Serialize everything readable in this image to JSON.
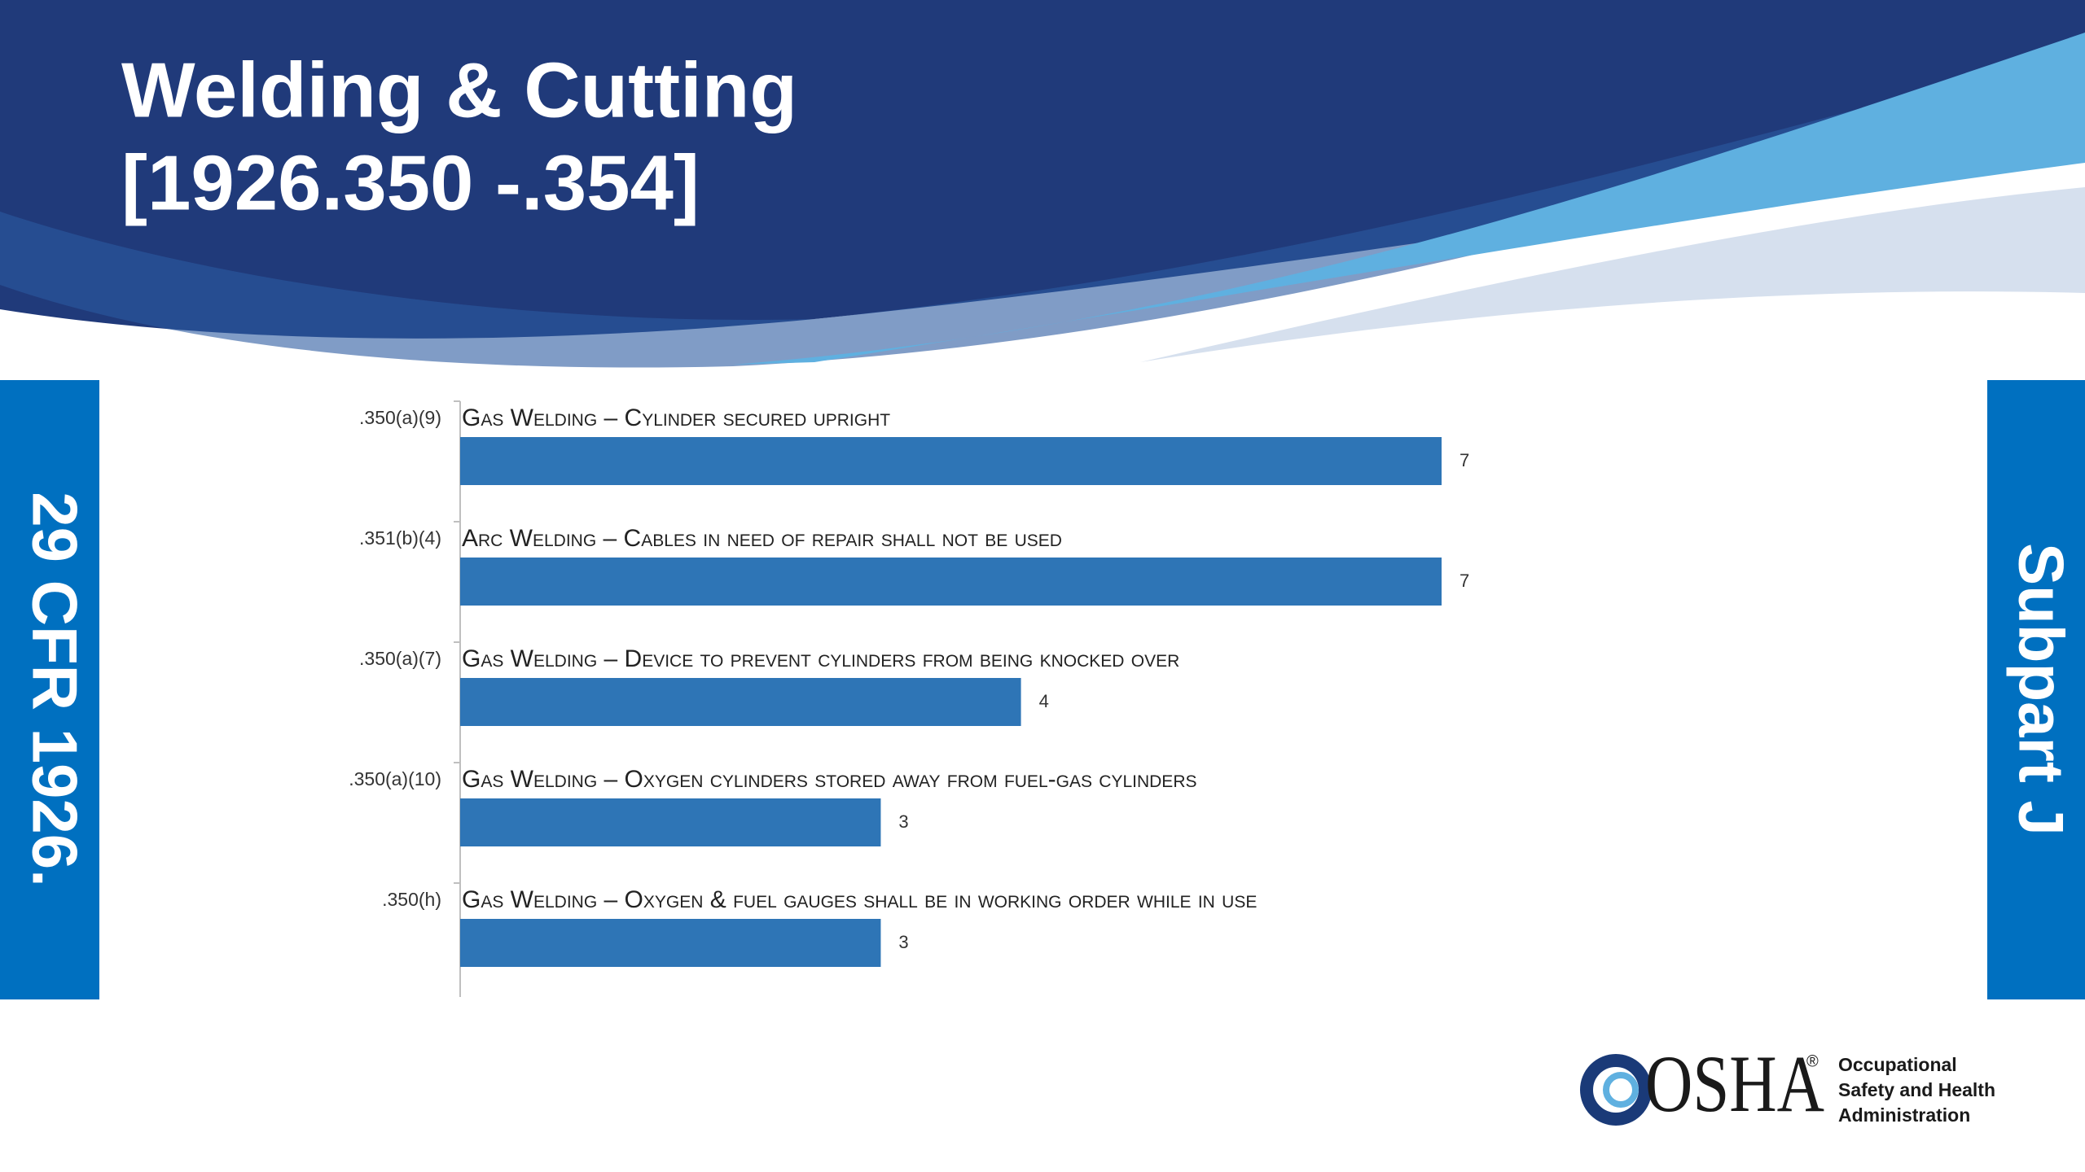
{
  "slide": {
    "title_lines": [
      "Welding & Cutting",
      "[1926.350 -.354]"
    ],
    "left_banner": "29 CFR 1926.",
    "right_banner": "Subpart J",
    "logo": {
      "mark": "OSHA",
      "registered": "®",
      "lines": [
        "Occupational",
        "Safety and Health",
        "Administration"
      ]
    }
  },
  "chart_data": {
    "type": "hbar",
    "categories": [
      ".350(a)(9)",
      ".351(b)(4)",
      ".350(a)(7)",
      ".350(a)(10)",
      ".350(h)"
    ],
    "descriptions": [
      "Gas Welding – Cylinder secured upright",
      "Arc Welding – Cables in need of repair shall not be used",
      "Gas Welding – Device to prevent cylinders from being knocked over",
      "Gas Welding – Oxygen cylinders stored away from fuel-gas cylinders",
      "Gas Welding – Oxygen & fuel gauges shall be in working order while in use"
    ],
    "values": [
      7,
      7,
      4,
      3,
      3
    ],
    "color": "#2e75b6"
  }
}
